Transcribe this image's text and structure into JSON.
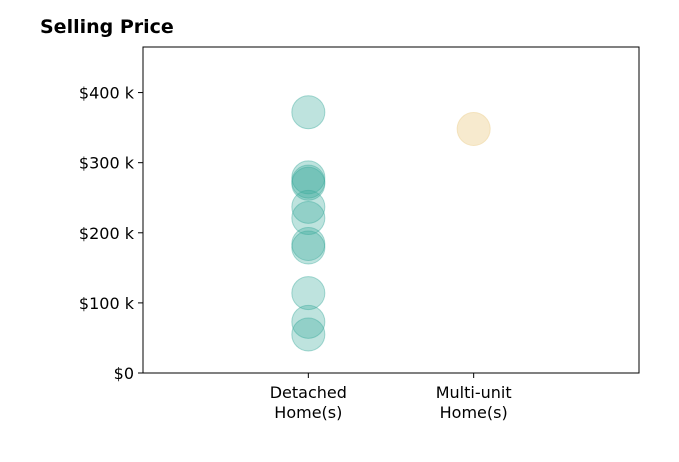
{
  "chart_data": {
    "type": "scatter",
    "title": "Selling Price",
    "xlabel": "",
    "ylabel": "",
    "categories": [
      "Detached Home(s)",
      "Multi-unit Home(s)"
    ],
    "category_tick_lines": [
      [
        "Detached",
        "Home(s)"
      ],
      [
        "Multi-unit",
        "Home(s)"
      ]
    ],
    "y_ticks": [
      0,
      100000,
      200000,
      300000,
      400000
    ],
    "y_tick_labels": [
      "$0",
      "$100 k",
      "$200 k",
      "$300 k",
      "$400 k"
    ],
    "ylim": [
      0,
      465000
    ],
    "xlim": [
      -1,
      2
    ],
    "grid": false,
    "legend": "none",
    "series": [
      {
        "category": "Detached Home(s)",
        "color": "#3aa99c",
        "opacity": 0.33,
        "values": [
          372000,
          279000,
          273000,
          270000,
          237000,
          221000,
          184000,
          179000,
          114000,
          73000,
          55000
        ]
      },
      {
        "category": "Multi-unit Home(s)",
        "color": "#f0d9a6",
        "opacity": 0.55,
        "values": [
          348000
        ]
      }
    ]
  }
}
